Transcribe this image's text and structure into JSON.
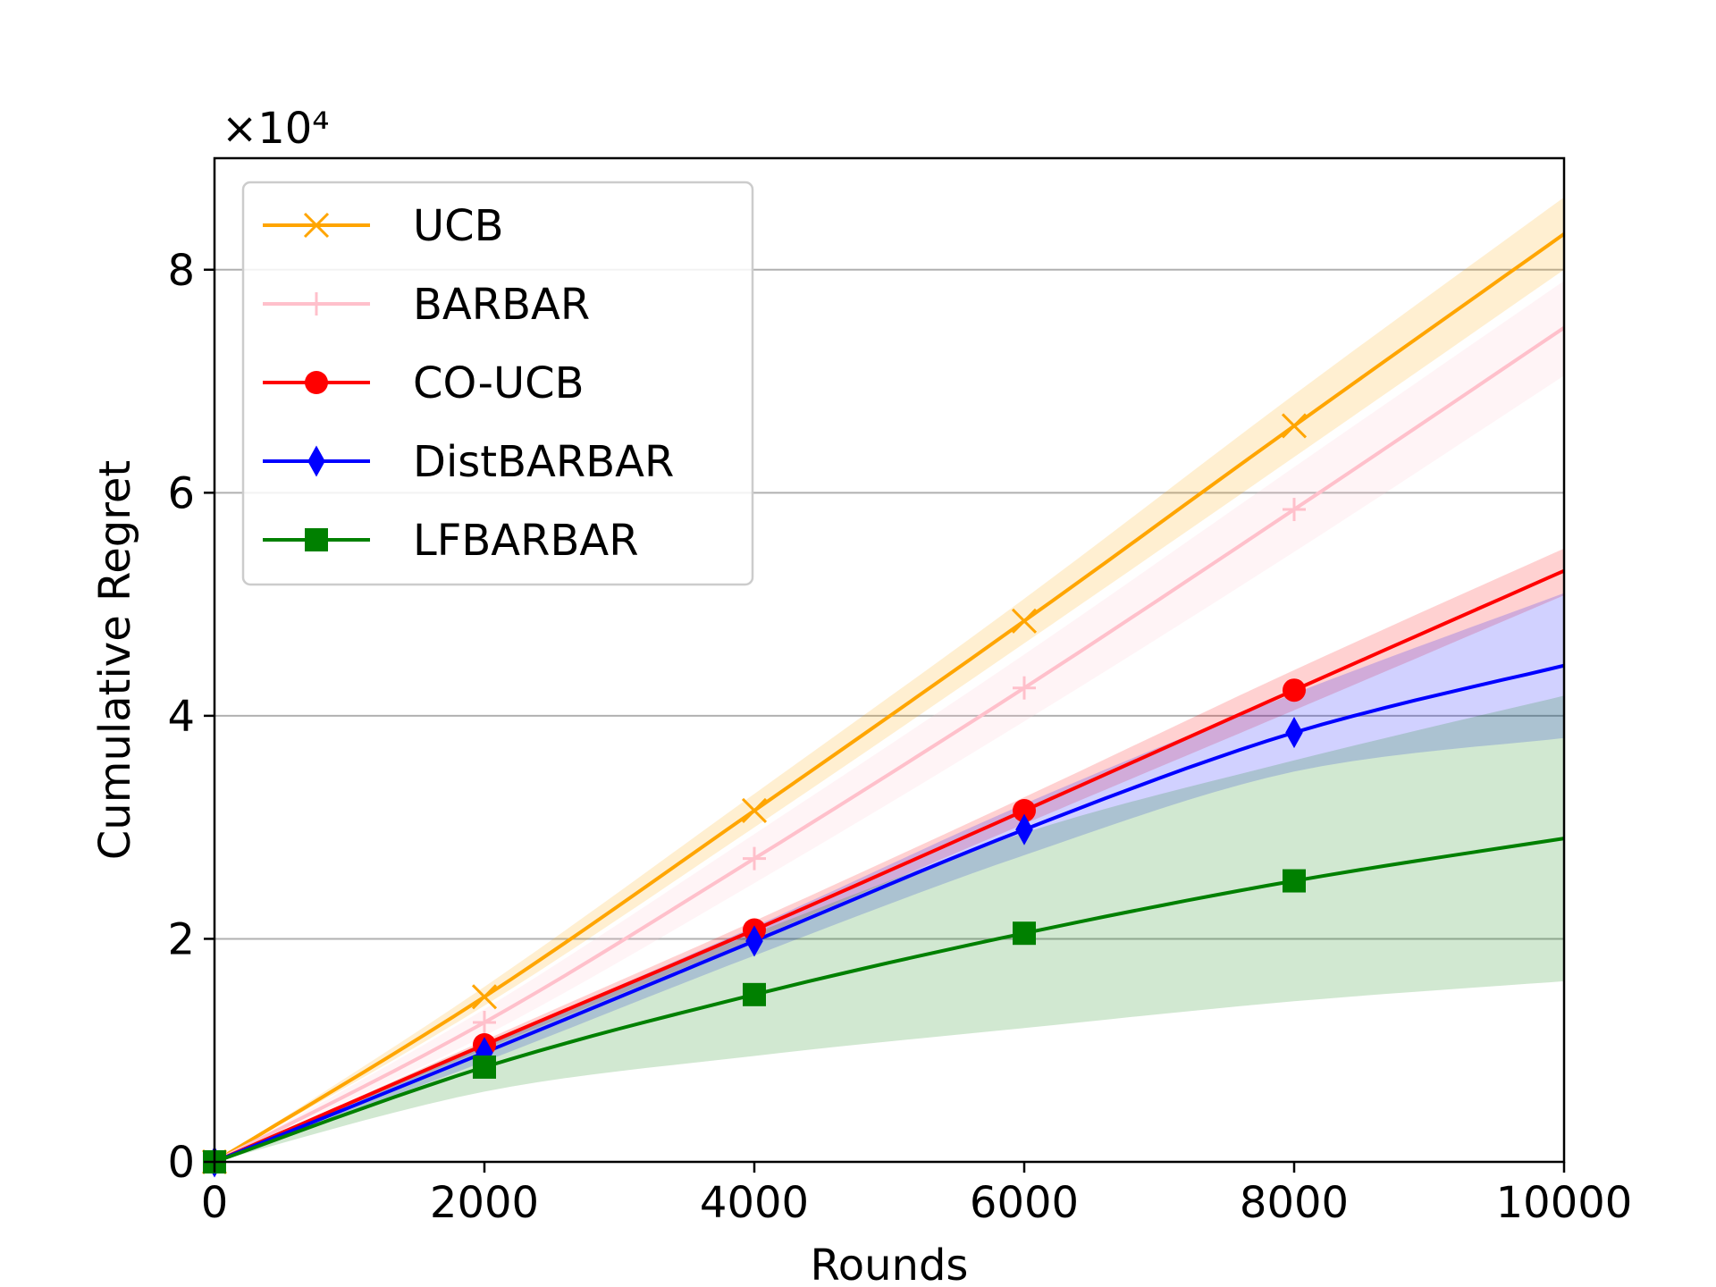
{
  "chart_data": {
    "type": "line",
    "title": "",
    "xlabel": "Rounds",
    "ylabel": "Cumulative Regret",
    "y_multiplier_label": "×10⁴",
    "xlim": [
      0,
      10000
    ],
    "ylim": [
      0,
      90000
    ],
    "xticks": [
      0,
      2000,
      4000,
      6000,
      8000,
      10000
    ],
    "xtick_labels": [
      "0",
      "2000",
      "4000",
      "6000",
      "8000",
      "10000"
    ],
    "yticks": [
      0,
      20000,
      40000,
      60000,
      80000
    ],
    "ytick_labels": [
      "0",
      "2",
      "4",
      "6",
      "8"
    ],
    "grid": "horizontal",
    "legend_position": "top-left",
    "series": [
      {
        "name": "UCB",
        "color": "#FFA500",
        "marker": "x",
        "x": [
          0,
          2000,
          4000,
          6000,
          8000,
          10000
        ],
        "y": [
          0,
          14800,
          31500,
          48500,
          66000,
          83200
        ],
        "lower": [
          0,
          14000,
          30000,
          46500,
          63200,
          80000
        ],
        "upper": [
          0,
          15700,
          33000,
          50500,
          68800,
          86500
        ]
      },
      {
        "name": "BARBAR",
        "color": "#FFC0CB",
        "marker": "+",
        "x": [
          0,
          2000,
          4000,
          6000,
          8000,
          10000
        ],
        "y": [
          0,
          12500,
          27200,
          42500,
          58500,
          74800
        ],
        "lower": [
          0,
          11300,
          25000,
          39500,
          54700,
          70500
        ],
        "upper": [
          0,
          13700,
          29400,
          45500,
          62300,
          79000
        ]
      },
      {
        "name": "CO-UCB",
        "color": "#FF0000",
        "marker": "circle",
        "x": [
          0,
          2000,
          4000,
          6000,
          8000,
          10000
        ],
        "y": [
          0,
          10500,
          20800,
          31500,
          42300,
          53000
        ],
        "lower": [
          0,
          10100,
          20000,
          30300,
          40500,
          50800
        ],
        "upper": [
          0,
          10900,
          21600,
          32700,
          44100,
          55000
        ]
      },
      {
        "name": "DistBARBAR",
        "color": "#0000FF",
        "marker": "diamond",
        "x": [
          0,
          2000,
          4000,
          6000,
          8000,
          10000
        ],
        "y": [
          0,
          9800,
          19800,
          29800,
          38500,
          44500
        ],
        "lower": [
          0,
          9000,
          18500,
          27500,
          35000,
          38000
        ],
        "upper": [
          0,
          10600,
          21100,
          32100,
          42000,
          51000
        ]
      },
      {
        "name": "LFBARBAR",
        "color": "#008000",
        "marker": "square",
        "x": [
          0,
          2000,
          4000,
          6000,
          8000,
          10000
        ],
        "y": [
          0,
          8500,
          15000,
          20500,
          25200,
          29000
        ],
        "lower": [
          0,
          6300,
          9500,
          12000,
          14400,
          16200
        ],
        "upper": [
          0,
          10700,
          20500,
          29500,
          36000,
          41800
        ]
      }
    ]
  }
}
